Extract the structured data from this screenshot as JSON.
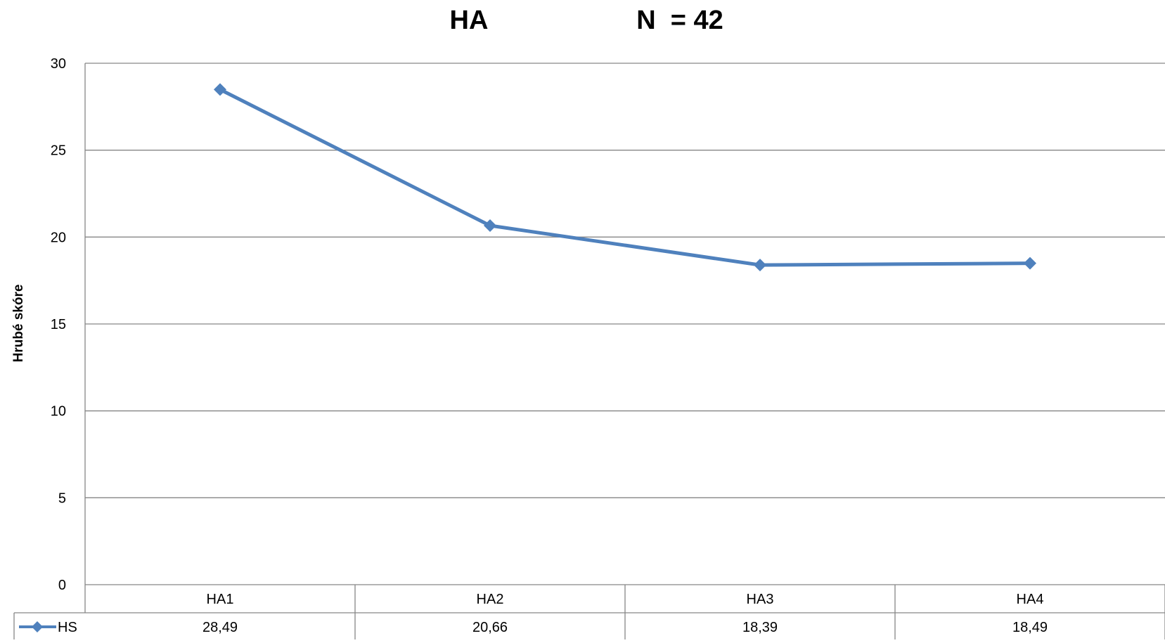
{
  "chart_data": {
    "type": "line",
    "title": "HA",
    "subtitle": "N  = 42",
    "xlabel": "",
    "ylabel": "Hrubé skóre",
    "categories": [
      "HA1",
      "HA2",
      "HA3",
      "HA4"
    ],
    "series": [
      {
        "name": "HS",
        "values": [
          28.49,
          20.66,
          18.39,
          18.49
        ],
        "labels": [
          "28,49",
          "20,66",
          "18,39",
          "18,49"
        ],
        "color": "#4F81BD",
        "marker": "diamond"
      }
    ],
    "ylim": [
      0,
      30
    ],
    "yticks": [
      "0",
      "5",
      "10",
      "15",
      "20",
      "25",
      "30"
    ],
    "grid": true,
    "data_table": true,
    "legend": "data-table-left"
  }
}
